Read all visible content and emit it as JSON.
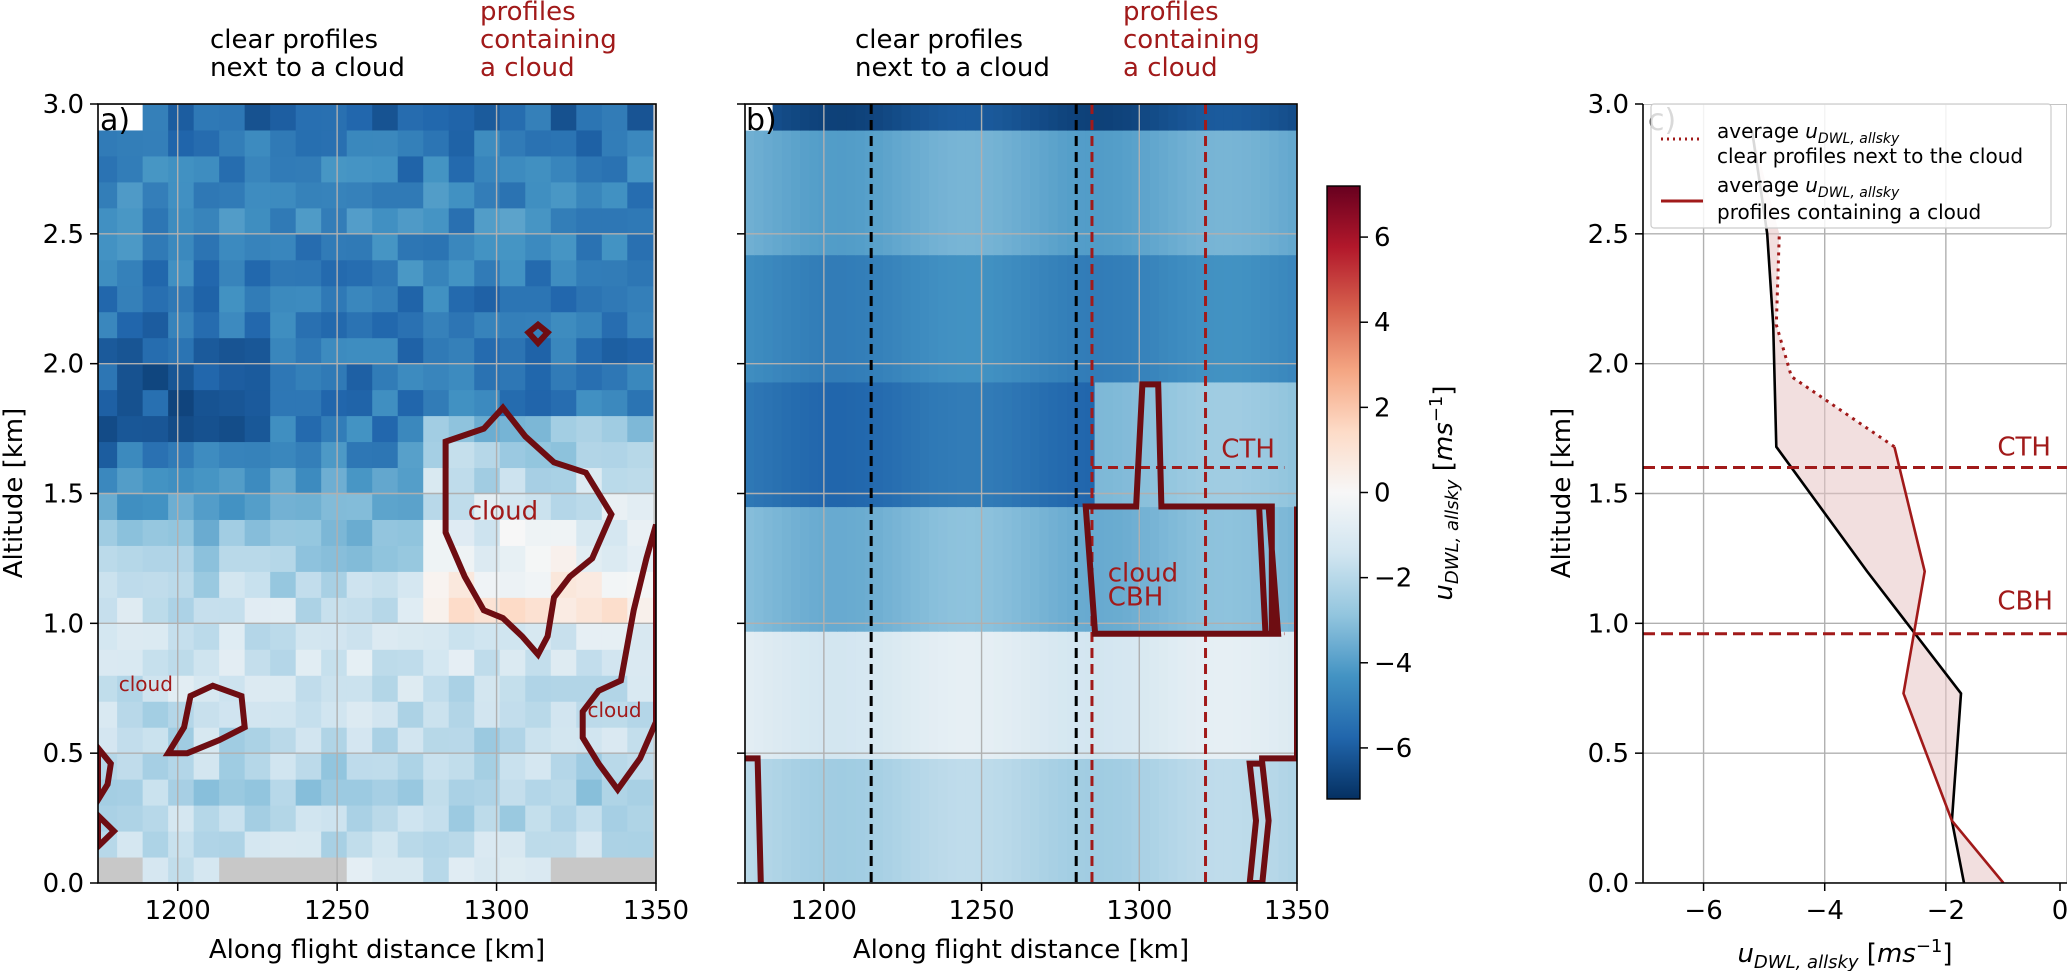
{
  "header_labels": {
    "a_clear_1": "clear profiles",
    "a_clear_2": "next to a cloud",
    "a_cloud_1": "profiles",
    "a_cloud_2": "containing",
    "a_cloud_3": "a cloud",
    "b_clear_1": "clear profiles",
    "b_clear_2": "next to a cloud",
    "b_cloud_1": "profiles",
    "b_cloud_2": "containing",
    "b_cloud_3": "a cloud"
  },
  "colors": {
    "cloud_contour": "#6e0d12",
    "annotation_red": "#a11a1a",
    "mean_black": "#000000",
    "grid": "#b0b0b0",
    "missing": "#c8c8c8",
    "colormap": "RdBu_r"
  },
  "chart_data": [
    {
      "type": "heatmap",
      "panel_label": "a)",
      "xlabel": "Along flight distance [km]",
      "ylabel": "Altitude [km]",
      "xlim": [
        1175,
        1350
      ],
      "ylim": [
        0.0,
        3.0
      ],
      "xticks": [
        1200,
        1250,
        1300,
        1350
      ],
      "yticks": [
        0.0,
        0.5,
        1.0,
        1.5,
        2.0,
        2.5,
        3.0
      ],
      "grid": true,
      "value_field": "u_DWL,allsky [ms-1] (approximate cell values)",
      "x_centers": [
        1177,
        1185,
        1193,
        1201,
        1209,
        1217,
        1225,
        1233,
        1241,
        1249,
        1257,
        1265,
        1273,
        1281,
        1289,
        1297,
        1305,
        1313,
        1321,
        1329,
        1337,
        1345
      ],
      "y_centers": [
        0.05,
        0.15,
        0.25,
        0.35,
        0.45,
        0.55,
        0.65,
        0.75,
        0.85,
        0.95,
        1.05,
        1.15,
        1.25,
        1.35,
        1.45,
        1.55,
        1.65,
        1.75,
        1.85,
        1.95,
        2.05,
        2.15,
        2.25,
        2.35,
        2.45,
        2.55,
        2.65,
        2.75,
        2.85,
        2.95
      ],
      "profile_rows": [
        {
          "alt": 0.05,
          "u": -1.5
        },
        {
          "alt": 0.35,
          "u": -2.3
        },
        {
          "alt": 0.7,
          "u": -1.6
        },
        {
          "alt": 1.0,
          "u": -1.3
        },
        {
          "alt": 1.35,
          "u": -3.0
        },
        {
          "alt": 1.75,
          "u": -5.0
        },
        {
          "alt": 2.1,
          "u": -5.3
        },
        {
          "alt": 2.6,
          "u": -4.6
        },
        {
          "alt": 2.95,
          "u": -5.6
        }
      ],
      "cloud_label_main": "cloud",
      "cloud_label_left": "cloud",
      "cloud_label_right": "cloud",
      "cloud_contours": [
        {
          "name": "main",
          "points": [
            [
              1284,
              1.7
            ],
            [
              1296,
              1.75
            ],
            [
              1302,
              1.83
            ],
            [
              1309,
              1.72
            ],
            [
              1318,
              1.62
            ],
            [
              1328,
              1.58
            ],
            [
              1336,
              1.42
            ],
            [
              1330,
              1.25
            ],
            [
              1323,
              1.18
            ],
            [
              1318,
              1.1
            ],
            [
              1316,
              0.95
            ],
            [
              1313,
              0.88
            ],
            [
              1308,
              0.95
            ],
            [
              1302,
              1.02
            ],
            [
              1296,
              1.05
            ],
            [
              1290,
              1.18
            ],
            [
              1284,
              1.35
            ]
          ]
        },
        {
          "name": "left",
          "points": [
            [
              1197,
              0.5
            ],
            [
              1203,
              0.5
            ],
            [
              1213,
              0.55
            ],
            [
              1221,
              0.6
            ],
            [
              1220,
              0.72
            ],
            [
              1211,
              0.76
            ],
            [
              1204,
              0.72
            ],
            [
              1202,
              0.6
            ]
          ]
        },
        {
          "name": "right",
          "points": [
            [
              1350,
              1.38
            ],
            [
              1347,
              1.25
            ],
            [
              1343,
              1.05
            ],
            [
              1339,
              0.78
            ],
            [
              1332,
              0.74
            ],
            [
              1327,
              0.66
            ],
            [
              1327,
              0.56
            ],
            [
              1332,
              0.46
            ],
            [
              1338,
              0.36
            ],
            [
              1345,
              0.48
            ],
            [
              1350,
              0.62
            ]
          ]
        },
        {
          "name": "bottom-left",
          "points": [
            [
              1175,
              0.52
            ],
            [
              1179,
              0.46
            ],
            [
              1178,
              0.38
            ],
            [
              1175,
              0.32
            ]
          ]
        },
        {
          "name": "tiny-left",
          "points": [
            [
              1175,
              0.26
            ],
            [
              1180,
              0.2
            ],
            [
              1175,
              0.14
            ]
          ]
        },
        {
          "name": "tiny-top",
          "points": [
            [
              1310,
              2.12
            ],
            [
              1313,
              2.08
            ],
            [
              1316,
              2.12
            ],
            [
              1313,
              2.15
            ]
          ]
        }
      ]
    },
    {
      "type": "heatmap",
      "panel_label": "b)",
      "xlabel": "Along flight distance [km]",
      "xlim": [
        1175,
        1350
      ],
      "ylim": [
        0.0,
        3.0
      ],
      "xticks": [
        1200,
        1250,
        1300,
        1350
      ],
      "yticks": [
        0.0,
        0.5,
        1.0,
        1.5,
        2.0,
        2.5,
        3.0
      ],
      "grid": true,
      "bands": [
        {
          "y0": 0.0,
          "y1": 0.48,
          "u": -2.2
        },
        {
          "y0": 0.48,
          "y1": 0.97,
          "u": -1.0
        },
        {
          "y0": 0.97,
          "y1": 1.45,
          "u": -3.3
        },
        {
          "y0": 1.45,
          "y1": 1.93,
          "u": -5.4
        },
        {
          "y0": 1.93,
          "y1": 2.42,
          "u": -4.7
        },
        {
          "y0": 2.42,
          "y1": 2.9,
          "u": -3.7
        },
        {
          "y0": 2.9,
          "y1": 3.0,
          "u": -6.4
        }
      ],
      "clear_lines_x": [
        1215,
        1280
      ],
      "cloud_lines_x": [
        1285,
        1321
      ],
      "CTH": 1.6,
      "CBH": 0.96,
      "cth_label": "CTH",
      "cbh_label": "CBH",
      "cloud_label": "cloud",
      "contours": [
        {
          "name": "cloud",
          "points": [
            [
              1285,
              1.45
            ],
            [
              1299,
              1.45
            ],
            [
              1301,
              1.92
            ],
            [
              1306,
              1.92
            ],
            [
              1307,
              1.45
            ],
            [
              1341,
              1.45
            ],
            [
              1344,
              0.96
            ],
            [
              1340,
              0.96
            ],
            [
              1338,
              1.45
            ],
            [
              1342,
              1.45
            ],
            [
              1342,
              0.96
            ],
            [
              1286,
              0.96
            ],
            [
              1283,
              1.45
            ]
          ]
        },
        {
          "name": "bottom",
          "points": [
            [
              1175,
              0.48
            ],
            [
              1179,
              0.48
            ],
            [
              1180,
              0.0
            ]
          ]
        },
        {
          "name": "right-low",
          "points": [
            [
              1338,
              0.48
            ],
            [
              1350,
              0.48
            ],
            [
              1350,
              1.45
            ]
          ]
        },
        {
          "name": "right-narrow",
          "points": [
            [
              1335,
              0.0
            ],
            [
              1337,
              0.24
            ],
            [
              1335,
              0.46
            ],
            [
              1339,
              0.46
            ],
            [
              1341,
              0.24
            ],
            [
              1339,
              0.0
            ]
          ]
        }
      ]
    },
    {
      "type": "colorbar",
      "label": "u_DWL, allsky [ms^-1]",
      "range": [
        -7.2,
        7.2
      ],
      "ticks": [
        -6,
        -4,
        -2,
        0,
        2,
        4,
        6
      ],
      "tick_labels": [
        "−6",
        "−4",
        "−2",
        "0",
        "2",
        "4",
        "6"
      ]
    },
    {
      "type": "line",
      "panel_label": "c)",
      "xlabel": "u_DWL, allsky [ms^-1]",
      "ylabel": "Altitude [km]",
      "xlim": [
        -7,
        0
      ],
      "ylim": [
        0.0,
        3.0
      ],
      "xticks": [
        -6,
        -4,
        -2,
        0
      ],
      "xtick_labels": [
        "−6",
        "−4",
        "−2",
        "0"
      ],
      "yticks": [
        0.0,
        0.5,
        1.0,
        1.5,
        2.0,
        2.5,
        3.0
      ],
      "grid": true,
      "CTH": 1.6,
      "CBH": 0.96,
      "cth_label": "CTH",
      "cbh_label": "CBH",
      "legend_position": "upper-left",
      "series": [
        {
          "name": "average u_DWL, allsky — clear profiles next to the cloud",
          "legend_line1": "average ",
          "legend_line2": "clear profiles next to the cloud",
          "style": "solid black / dotted red above CTH",
          "points": [
            [
              -1.7,
              0.0
            ],
            [
              -1.9,
              0.24
            ],
            [
              -1.75,
              0.73
            ],
            [
              -3.3,
              1.2
            ],
            [
              -4.8,
              1.68
            ],
            [
              -4.85,
              2.15
            ],
            [
              -4.95,
              2.5
            ],
            [
              -5.2,
              2.9
            ]
          ]
        },
        {
          "name": "average u_DWL, allsky — profiles containing a cloud",
          "legend_line1": "average ",
          "legend_line2": "profiles containing a cloud",
          "style": "solid red",
          "points": [
            [
              -1.05,
              0.0
            ],
            [
              -1.9,
              0.24
            ],
            [
              -2.7,
              0.73
            ],
            [
              -2.35,
              1.2
            ],
            [
              -2.85,
              1.68
            ],
            [
              -4.55,
              1.95
            ],
            [
              -4.8,
              2.15
            ],
            [
              -4.75,
              2.5
            ]
          ]
        }
      ]
    }
  ]
}
